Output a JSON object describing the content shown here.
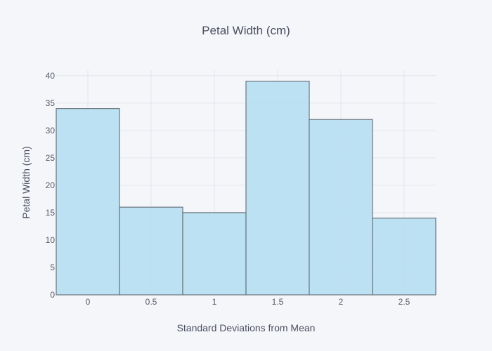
{
  "chart_data": {
    "type": "bar",
    "title": "Petal Width (cm)",
    "xlabel": "Standard Deviations from Mean",
    "ylabel": "Petal Width (cm)",
    "categories": [
      "0",
      "0.5",
      "1",
      "1.5",
      "2",
      "2.5"
    ],
    "x": [
      0,
      0.5,
      1,
      1.5,
      2,
      2.5
    ],
    "values": [
      34,
      16,
      15,
      39,
      32,
      14
    ],
    "bin_width": 0.5,
    "xlim": [
      -0.25,
      2.75
    ],
    "ylim": [
      0,
      41
    ],
    "yticks": [
      0,
      5,
      10,
      15,
      20,
      25,
      30,
      35,
      40
    ],
    "grid": true,
    "colors": {
      "bar_fill": "#b8dff1",
      "bar_stroke": "#69767f",
      "grid": "#e3e5ec",
      "text": "#555b66",
      "background": "#f5f6fa"
    }
  }
}
